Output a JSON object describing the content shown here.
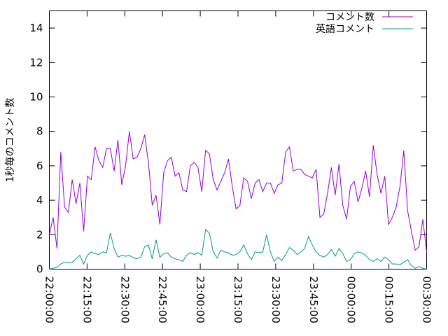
{
  "chart_data": {
    "type": "line",
    "title": "",
    "xlabel": "",
    "ylabel": "1秒毎のコメント数",
    "ylim": [
      0,
      15
    ],
    "y_ticks": [
      0,
      2,
      4,
      6,
      8,
      10,
      12,
      14
    ],
    "y_tick_labels": [
      "0",
      "2",
      "4",
      "6",
      "8",
      "10",
      "12",
      "14"
    ],
    "x_tick_labels": [
      "22:00:00",
      "22:15:00",
      "22:30:00",
      "22:45:00",
      "23:00:00",
      "23:15:00",
      "23:30:00",
      "23:45:00",
      "00:00:00",
      "00:15:00",
      "00:30:00"
    ],
    "x_start": "22:00:00",
    "x_end": "00:30:00",
    "x_step_seconds": 60,
    "grid": false,
    "legend_position": "top-right",
    "series": [
      {
        "name": "コメント数",
        "color": "#9400d3",
        "values": [
          2.0,
          3.0,
          1.2,
          6.8,
          3.6,
          3.3,
          5.2,
          3.8,
          5.0,
          2.2,
          5.4,
          5.2,
          7.1,
          6.3,
          5.9,
          7.0,
          7.0,
          5.7,
          7.5,
          4.9,
          6.0,
          8.0,
          6.4,
          6.5,
          7.0,
          7.8,
          6.2,
          3.7,
          4.3,
          2.6,
          5.6,
          6.3,
          6.5,
          5.4,
          5.6,
          4.6,
          4.5,
          6.0,
          6.2,
          5.9,
          4.5,
          6.9,
          6.7,
          5.2,
          4.6,
          5.1,
          5.6,
          6.4,
          4.8,
          3.5,
          3.7,
          5.3,
          5.1,
          4.1,
          5.0,
          5.2,
          4.5,
          5.0,
          5.0,
          4.4,
          4.9,
          5.0,
          6.8,
          7.1,
          5.7,
          5.8,
          5.8,
          5.5,
          5.4,
          5.3,
          5.8,
          3.0,
          3.2,
          4.4,
          5.9,
          4.3,
          6.1,
          3.7,
          2.9,
          4.8,
          5.1,
          3.9,
          4.7,
          5.7,
          4.2,
          7.2,
          5.5,
          4.4,
          5.4,
          2.6,
          3.0,
          3.6,
          4.8,
          6.9,
          3.4,
          2.2,
          1.1,
          1.3,
          2.9,
          1.0
        ]
      },
      {
        "name": "英語コメント",
        "color": "#009e73",
        "values": [
          0.0,
          0.05,
          0.1,
          0.3,
          0.4,
          0.35,
          0.4,
          0.6,
          0.8,
          0.3,
          0.8,
          1.0,
          0.9,
          0.85,
          1.0,
          0.95,
          2.1,
          1.2,
          0.7,
          0.8,
          0.75,
          0.8,
          0.65,
          0.6,
          0.7,
          1.3,
          1.4,
          0.6,
          1.7,
          0.7,
          0.9,
          0.95,
          0.7,
          0.6,
          0.55,
          0.45,
          0.8,
          0.95,
          0.85,
          0.95,
          0.8,
          2.3,
          2.1,
          1.0,
          0.65,
          1.1,
          1.0,
          0.95,
          0.8,
          0.85,
          1.0,
          1.4,
          0.9,
          0.55,
          1.0,
          0.95,
          1.0,
          2.0,
          1.0,
          0.45,
          0.7,
          0.5,
          0.85,
          1.25,
          1.1,
          0.85,
          1.0,
          1.2,
          1.9,
          1.4,
          1.0,
          0.8,
          0.7,
          0.85,
          1.15,
          0.75,
          1.2,
          0.9,
          0.45,
          0.55,
          0.9,
          1.0,
          0.95,
          0.8,
          0.55,
          0.45,
          0.6,
          0.45,
          0.7,
          0.55,
          0.3,
          0.3,
          0.25,
          0.4,
          0.55,
          0.2,
          0.05,
          0.15,
          0.05,
          0.0
        ]
      }
    ]
  }
}
